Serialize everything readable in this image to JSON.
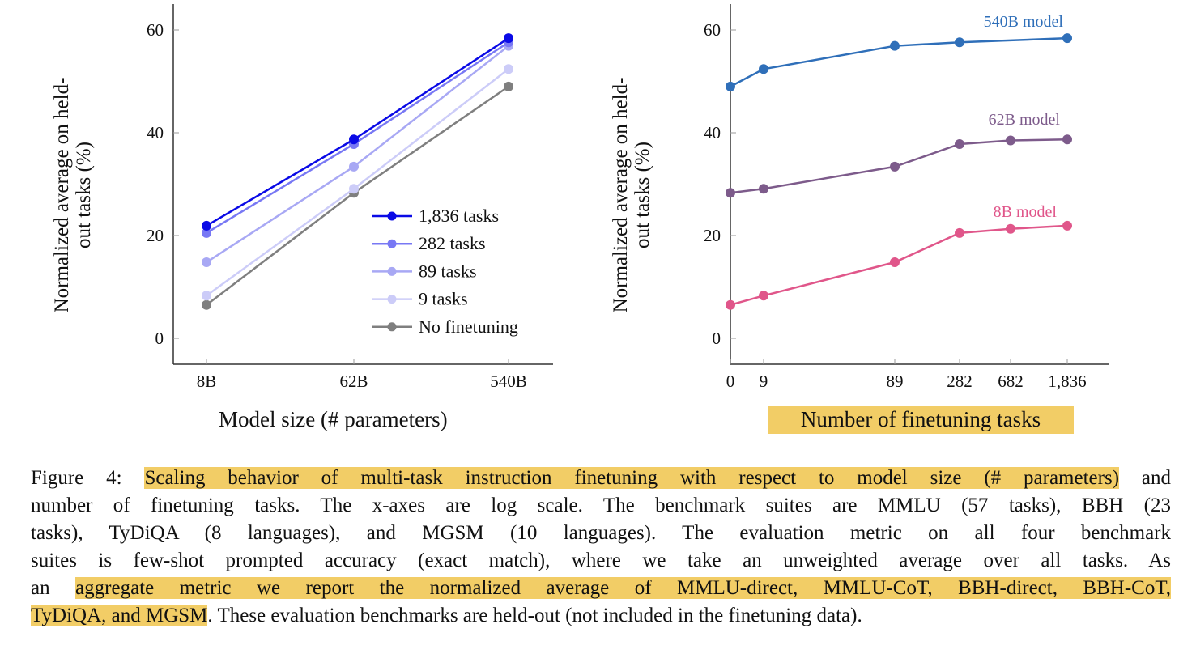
{
  "chart_data": [
    {
      "type": "line",
      "xlabel": "Model size (# parameters)",
      "ylabel": "Normalized average on held-out tasks (%)",
      "x_scale": "log",
      "categories": [
        "8B",
        "62B",
        "540B"
      ],
      "yticks": [
        "0",
        "20",
        "40",
        "60"
      ],
      "ylim": [
        -5,
        65
      ],
      "grid": false,
      "legend_position": "bottom-right",
      "series": [
        {
          "name": "1,836 tasks",
          "color": "#0a0ae6",
          "values": [
            21.9,
            38.7,
            58.4
          ]
        },
        {
          "name": "282 tasks",
          "color": "#7878f4",
          "values": [
            20.5,
            37.8,
            57.6
          ]
        },
        {
          "name": "89 tasks",
          "color": "#a8a8f4",
          "values": [
            14.8,
            33.4,
            56.9
          ]
        },
        {
          "name": "9 tasks",
          "color": "#ccccf8",
          "values": [
            8.3,
            29.1,
            52.4
          ]
        },
        {
          "name": "No finetuning",
          "color": "#7f7f7f",
          "values": [
            6.5,
            28.3,
            49.0
          ]
        }
      ]
    },
    {
      "type": "line",
      "xlabel": "Number of finetuning tasks",
      "ylabel": "Normalized average on held-out tasks (%)",
      "x_scale": "log",
      "xticks": [
        "0",
        "9",
        "89",
        "282",
        "682",
        "1,836"
      ],
      "yticks": [
        "0",
        "20",
        "40",
        "60"
      ],
      "ylim": [
        -5,
        65
      ],
      "grid": false,
      "series": [
        {
          "name": "540B model",
          "color": "#2f6fb9",
          "x": [
            0,
            9,
            89,
            282,
            1836
          ],
          "values": [
            49.0,
            52.4,
            56.9,
            57.6,
            58.4
          ]
        },
        {
          "name": "62B model",
          "color": "#7d5b8b",
          "x": [
            0,
            9,
            89,
            282,
            682,
            1836
          ],
          "values": [
            28.3,
            29.1,
            33.4,
            37.8,
            38.5,
            38.7
          ]
        },
        {
          "name": "8B model",
          "color": "#e0568a",
          "x": [
            0,
            9,
            89,
            282,
            682,
            1836
          ],
          "values": [
            6.5,
            8.3,
            14.8,
            20.5,
            21.3,
            21.9
          ]
        }
      ]
    }
  ],
  "highlight_color": "#f2cd66",
  "caption": {
    "lines": [
      [
        {
          "text": "Figure 4: ",
          "hl": false
        },
        {
          "text": "Scaling behavior of multi-task instruction finetuning with respect to model size (# parameters)",
          "hl": true
        },
        {
          "text": " and",
          "hl": false
        }
      ],
      [
        {
          "text": "number of finetuning tasks. The x-axes are log scale. The benchmark suites are MMLU (57 tasks), BBH (23",
          "hl": false
        }
      ],
      [
        {
          "text": "tasks), TyDiQA (8 languages), and MGSM (10 languages). The evaluation metric on all four benchmark",
          "hl": false
        }
      ],
      [
        {
          "text": "suites is few-shot prompted accuracy (exact match), where we take an unweighted average over all tasks. As",
          "hl": false
        }
      ],
      [
        {
          "text": "an ",
          "hl": false
        },
        {
          "text": "aggregate metric we report the normalized average of MMLU-direct, MMLU-CoT, BBH-direct, BBH-CoT,",
          "hl": true
        }
      ],
      [
        {
          "text": "TyDiQA, and MGSM",
          "hl": true
        },
        {
          "text": ". These evaluation benchmarks are held-out (not included in the finetuning data).",
          "hl": false
        }
      ]
    ]
  }
}
